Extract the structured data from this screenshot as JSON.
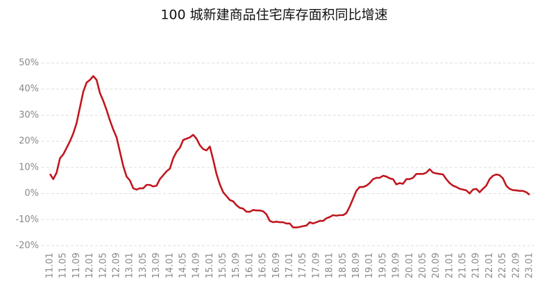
{
  "chart_data": {
    "type": "line",
    "title": "100 城新建商品住宅库存面积同比增速",
    "categories": [
      "11.01",
      null,
      null,
      null,
      "11.05",
      null,
      null,
      null,
      "11.09",
      null,
      null,
      null,
      "12.01",
      null,
      null,
      null,
      "12.05",
      null,
      null,
      null,
      "12.09",
      null,
      null,
      null,
      "13.01",
      null,
      null,
      null,
      "13.05",
      null,
      null,
      null,
      "13.09",
      null,
      null,
      null,
      "14.01",
      null,
      null,
      null,
      "14.05",
      null,
      null,
      null,
      "14.09",
      null,
      null,
      null,
      "15.01",
      null,
      null,
      null,
      "15.05",
      null,
      null,
      null,
      "15.09",
      null,
      null,
      null,
      "16.01",
      null,
      null,
      null,
      "16.05",
      null,
      null,
      null,
      "16.09",
      null,
      null,
      null,
      "17.01",
      null,
      null,
      null,
      "17.05",
      null,
      null,
      null,
      "17.09",
      null,
      null,
      null,
      "18.01",
      null,
      null,
      null,
      "18.05",
      null,
      null,
      null,
      "18.09",
      null,
      null,
      null,
      "19.01",
      null,
      null,
      null,
      "19.05",
      null,
      null,
      null,
      "19.09",
      null,
      null,
      null,
      "20.01",
      null,
      null,
      null,
      "20.05",
      null,
      null,
      null,
      "20.09",
      null,
      null,
      null,
      "21.01",
      null,
      null,
      null,
      "21.05",
      null,
      null,
      null,
      "21.09",
      null,
      null,
      null,
      "22.01",
      null,
      null,
      null,
      "22.05",
      null,
      null,
      null,
      "22.09",
      null,
      null,
      null,
      "23.01"
    ],
    "values": [
      7.5,
      5.5,
      8,
      13.5,
      15,
      17.5,
      20,
      23,
      27,
      33,
      39,
      42.5,
      43.5,
      45,
      43.5,
      38.5,
      35.5,
      32,
      28,
      24.5,
      21.5,
      16,
      10.5,
      6.5,
      5,
      2,
      1.5,
      2,
      2,
      3.3,
      3.3,
      2.7,
      3,
      5.5,
      7,
      8.5,
      9.5,
      13.5,
      16,
      17.5,
      20.5,
      21,
      21.5,
      22.5,
      21,
      18.5,
      17,
      16.5,
      18,
      13,
      7.5,
      3.5,
      0.5,
      -1,
      -2.5,
      -3,
      -4.5,
      -5.5,
      -5.8,
      -7,
      -7,
      -6.3,
      -6.5,
      -6.5,
      -6.8,
      -8,
      -10.5,
      -11,
      -10.8,
      -11,
      -11,
      -11.5,
      -11.5,
      -13,
      -13,
      -12.8,
      -12.5,
      -12.3,
      -11,
      -11.5,
      -11,
      -10.5,
      -10.5,
      -9.5,
      -9,
      -8.3,
      -8.5,
      -8.3,
      -8.3,
      -7.5,
      -5,
      -2,
      1,
      2.5,
      2.5,
      3,
      4,
      5.5,
      6,
      6,
      6.8,
      6.5,
      5.8,
      5.5,
      3.5,
      4,
      3.7,
      5.5,
      5.5,
      6,
      7.5,
      7.5,
      7.5,
      8,
      9.3,
      8,
      7.7,
      7.5,
      7.3,
      5.5,
      4,
      3,
      2.5,
      1.8,
      1.5,
      1.2,
      0,
      1.5,
      1.8,
      0.5,
      1.8,
      3,
      5.5,
      6.8,
      7.3,
      7,
      5.8,
      3,
      1.8,
      1.3,
      1.2,
      1,
      1,
      0.5,
      -0.5
    ],
    "color": "#c0161e",
    "ylim": [
      -20,
      50
    ],
    "yticks": [
      {
        "value": -20,
        "label": "-20%"
      },
      {
        "value": -10,
        "label": "-10%"
      },
      {
        "value": 0,
        "label": "0%"
      },
      {
        "value": 10,
        "label": "10%"
      },
      {
        "value": 20,
        "label": "20%"
      },
      {
        "value": 30,
        "label": "30%"
      },
      {
        "value": 40,
        "label": "40%"
      },
      {
        "value": 50,
        "label": "50%"
      }
    ],
    "grid": true
  }
}
